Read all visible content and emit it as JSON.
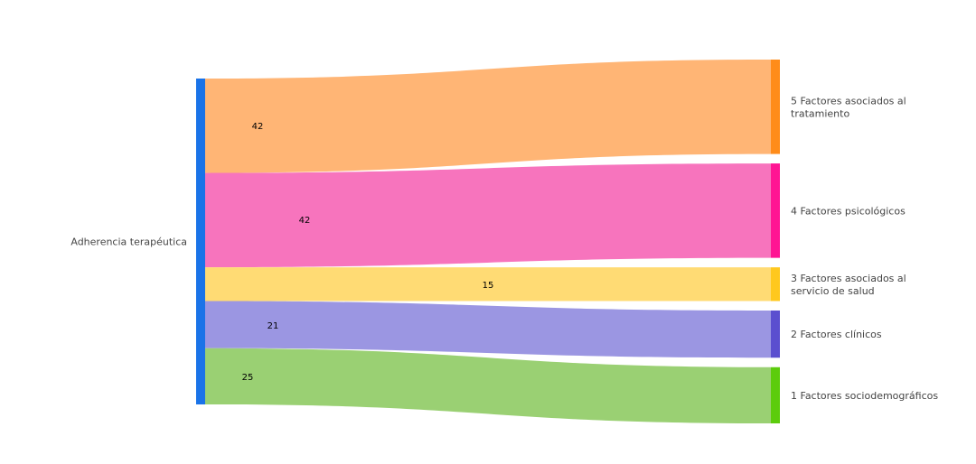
{
  "chart_data": {
    "type": "sankey",
    "title": "",
    "source": {
      "id": "src",
      "label": "Adherencia terapéutica",
      "color": "#1a73e8"
    },
    "targets": [
      {
        "id": "t5",
        "label_lines": [
          "5 Factores asociados al",
          "tratamiento"
        ],
        "color": "#ff8c1a",
        "flow_color": "#ffb575"
      },
      {
        "id": "t4",
        "label_lines": [
          "4 Factores psicológicos"
        ],
        "color": "#ff1493",
        "flow_color": "#f774bd"
      },
      {
        "id": "t3",
        "label_lines": [
          "3 Factores asociados al",
          "servicio de salud"
        ],
        "color": "#ffc81e",
        "flow_color": "#ffdb74"
      },
      {
        "id": "t2",
        "label_lines": [
          "2 Factores clínicos"
        ],
        "color": "#5b4fcf",
        "flow_color": "#9b96e2"
      },
      {
        "id": "t1",
        "label_lines": [
          "1 Factores sociodemográficos"
        ],
        "color": "#5ccc0c",
        "flow_color": "#9ad073"
      }
    ],
    "links": [
      {
        "source": "src",
        "target": "t5",
        "value": 42
      },
      {
        "source": "src",
        "target": "t4",
        "value": 42
      },
      {
        "source": "src",
        "target": "t3",
        "value": 15
      },
      {
        "source": "src",
        "target": "t2",
        "value": 21
      },
      {
        "source": "src",
        "target": "t1",
        "value": 25
      }
    ]
  }
}
